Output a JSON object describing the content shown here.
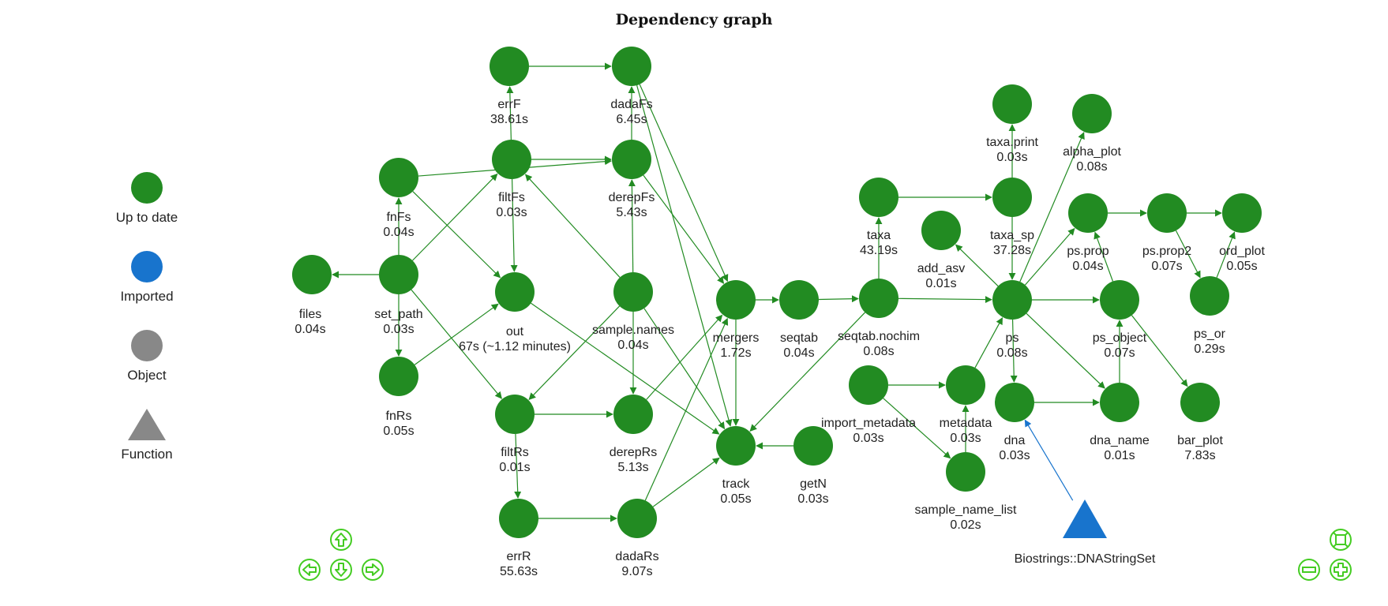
{
  "title": "Dependency graph",
  "colors": {
    "up_to_date": "#228b22",
    "imported": "#1874cd",
    "object": "#888888",
    "function": "#888888",
    "edge_green": "#228b22",
    "edge_blue": "#1874cd",
    "nav": "#44cc22"
  },
  "legend": [
    {
      "label": "Up to date",
      "shape": "dot",
      "color": "#228b22"
    },
    {
      "label": "Imported",
      "shape": "dot",
      "color": "#1874cd"
    },
    {
      "label": "Object",
      "shape": "dot",
      "color": "#888888"
    },
    {
      "label": "Function",
      "shape": "triangle",
      "color": "#888888"
    }
  ],
  "nodes": [
    {
      "id": "files",
      "label": "files",
      "time": "0.04s"
    },
    {
      "id": "set_path",
      "label": "set_path",
      "time": "0.03s"
    },
    {
      "id": "fnFs",
      "label": "fnFs",
      "time": "0.04s"
    },
    {
      "id": "fnRs",
      "label": "fnRs",
      "time": "0.05s"
    },
    {
      "id": "errF",
      "label": "errF",
      "time": "38.61s"
    },
    {
      "id": "filtFs",
      "label": "filtFs",
      "time": "0.03s"
    },
    {
      "id": "out",
      "label": "out",
      "time": "67s (~1.12 minutes)"
    },
    {
      "id": "filtRs",
      "label": "filtRs",
      "time": "0.01s"
    },
    {
      "id": "errR",
      "label": "errR",
      "time": "55.63s"
    },
    {
      "id": "dadaFs",
      "label": "dadaFs",
      "time": "6.45s"
    },
    {
      "id": "derepFs",
      "label": "derepFs",
      "time": "5.43s"
    },
    {
      "id": "sample_names",
      "label": "sample.names",
      "time": "0.04s"
    },
    {
      "id": "derepRs",
      "label": "derepRs",
      "time": "5.13s"
    },
    {
      "id": "dadaRs",
      "label": "dadaRs",
      "time": "9.07s"
    },
    {
      "id": "mergers",
      "label": "mergers",
      "time": "1.72s"
    },
    {
      "id": "track",
      "label": "track",
      "time": "0.05s"
    },
    {
      "id": "seqtab",
      "label": "seqtab",
      "time": "0.04s"
    },
    {
      "id": "getN",
      "label": "getN",
      "time": "0.03s"
    },
    {
      "id": "seqtab_nochim",
      "label": "seqtab.nochim",
      "time": "0.08s"
    },
    {
      "id": "taxa",
      "label": "taxa",
      "time": "43.19s"
    },
    {
      "id": "taxa_sp",
      "label": "taxa_sp",
      "time": "37.28s"
    },
    {
      "id": "taxa_print",
      "label": "taxa.print",
      "time": "0.03s"
    },
    {
      "id": "alpha_plot",
      "label": "alpha_plot",
      "time": "0.08s"
    },
    {
      "id": "add_asv",
      "label": "add_asv",
      "time": "0.01s"
    },
    {
      "id": "ps",
      "label": "ps",
      "time": "0.08s"
    },
    {
      "id": "import_metadata",
      "label": "import_metadata",
      "time": "0.03s"
    },
    {
      "id": "metadata",
      "label": "metadata",
      "time": "0.03s"
    },
    {
      "id": "sample_name_list",
      "label": "sample_name_list",
      "time": "0.02s"
    },
    {
      "id": "dna",
      "label": "dna",
      "time": "0.03s"
    },
    {
      "id": "biostrings",
      "label": "Biostrings::DNAStringSet",
      "time": ""
    },
    {
      "id": "ps_prop",
      "label": "ps.prop",
      "time": "0.04s"
    },
    {
      "id": "ps_object",
      "label": "ps_object",
      "time": "0.07s"
    },
    {
      "id": "dna_name",
      "label": "dna_name",
      "time": "0.01s"
    },
    {
      "id": "ps_prop2",
      "label": "ps.prop2",
      "time": "0.07s"
    },
    {
      "id": "ps_or",
      "label": "ps_or",
      "time": "0.29s"
    },
    {
      "id": "ord_plot",
      "label": "ord_plot",
      "time": "0.05s"
    },
    {
      "id": "bar_plot",
      "label": "bar_plot",
      "time": "7.83s"
    }
  ],
  "edges": [
    [
      "set_path",
      "files"
    ],
    [
      "set_path",
      "fnFs"
    ],
    [
      "set_path",
      "fnRs"
    ],
    [
      "set_path",
      "filtFs"
    ],
    [
      "set_path",
      "filtRs"
    ],
    [
      "fnFs",
      "out"
    ],
    [
      "fnFs",
      "derepFs"
    ],
    [
      "fnRs",
      "out"
    ],
    [
      "errF",
      "dadaFs"
    ],
    [
      "filtFs",
      "errF"
    ],
    [
      "filtFs",
      "derepFs"
    ],
    [
      "filtFs",
      "out"
    ],
    [
      "out",
      "track"
    ],
    [
      "filtRs",
      "derepRs"
    ],
    [
      "filtRs",
      "errR"
    ],
    [
      "errR",
      "dadaRs"
    ],
    [
      "sample_names",
      "filtFs"
    ],
    [
      "sample_names",
      "filtRs"
    ],
    [
      "sample_names",
      "derepFs"
    ],
    [
      "sample_names",
      "derepRs"
    ],
    [
      "sample_names",
      "track"
    ],
    [
      "dadaFs",
      "mergers"
    ],
    [
      "dadaFs",
      "track"
    ],
    [
      "derepFs",
      "dadaFs"
    ],
    [
      "derepFs",
      "mergers"
    ],
    [
      "derepRs",
      "mergers"
    ],
    [
      "dadaRs",
      "mergers"
    ],
    [
      "dadaRs",
      "track"
    ],
    [
      "mergers",
      "seqtab"
    ],
    [
      "mergers",
      "track"
    ],
    [
      "getN",
      "track"
    ],
    [
      "seqtab",
      "seqtab_nochim"
    ],
    [
      "seqtab_nochim",
      "taxa"
    ],
    [
      "seqtab_nochim",
      "ps"
    ],
    [
      "seqtab_nochim",
      "track"
    ],
    [
      "taxa",
      "taxa_sp"
    ],
    [
      "taxa_sp",
      "taxa_print"
    ],
    [
      "taxa_sp",
      "ps"
    ],
    [
      "ps",
      "add_asv"
    ],
    [
      "ps",
      "alpha_plot"
    ],
    [
      "ps",
      "dna"
    ],
    [
      "ps",
      "ps_prop"
    ],
    [
      "ps",
      "ps_object"
    ],
    [
      "ps",
      "dna_name"
    ],
    [
      "import_metadata",
      "metadata"
    ],
    [
      "import_metadata",
      "sample_name_list"
    ],
    [
      "metadata",
      "ps"
    ],
    [
      "sample_name_list",
      "metadata"
    ],
    [
      "biostrings",
      "dna"
    ],
    [
      "dna",
      "dna_name"
    ],
    [
      "dna_name",
      "ps_object"
    ],
    [
      "ps_object",
      "ps_prop"
    ],
    [
      "ps_object",
      "bar_plot"
    ],
    [
      "ps_prop",
      "ps_prop2"
    ],
    [
      "ps_prop2",
      "ord_plot"
    ],
    [
      "ps_prop2",
      "ps_or"
    ],
    [
      "ps_or",
      "ord_plot"
    ]
  ],
  "controls": {
    "nav_up": "up",
    "nav_left": "left",
    "nav_down": "down",
    "nav_right": "right",
    "zoom_fit": "fit",
    "zoom_out": "zoom-out",
    "zoom_in": "zoom-in"
  }
}
